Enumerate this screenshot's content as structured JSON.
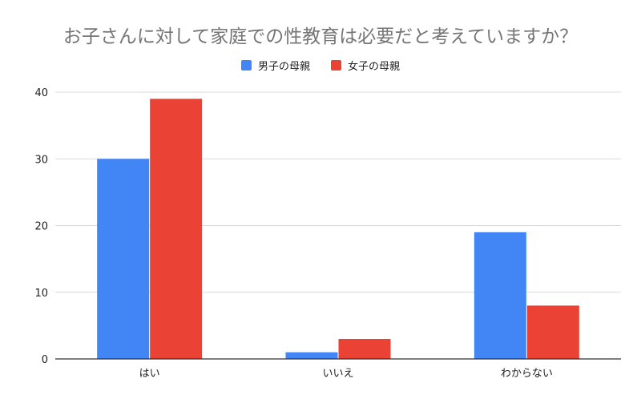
{
  "chart_data": {
    "type": "bar",
    "title": "お子さんに対して家庭での性教育は必要だと考えていますか？",
    "xlabel": "",
    "ylabel": "",
    "categories": [
      "はい",
      "いいえ",
      "わからない"
    ],
    "series": [
      {
        "name": "男子の母親",
        "color": "#4285F4",
        "values": [
          30,
          1,
          19
        ]
      },
      {
        "name": "女子の母親",
        "color": "#EA4335",
        "values": [
          39,
          3,
          8
        ]
      }
    ],
    "ylim": [
      0,
      40
    ],
    "yticks": [
      0,
      10,
      20,
      30,
      40
    ],
    "grid": true,
    "legend_position": "top"
  }
}
